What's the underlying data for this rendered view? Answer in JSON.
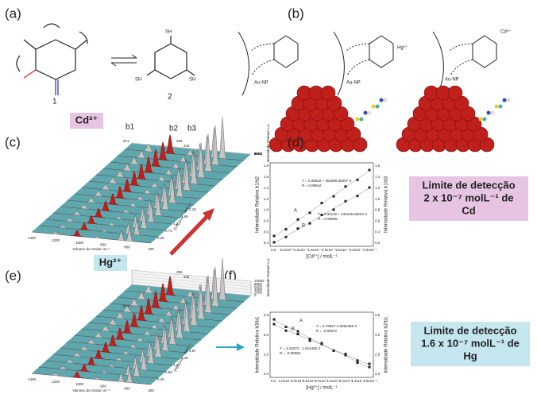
{
  "a": {
    "label": "(a)",
    "compound_1": "1",
    "compound_2": "2",
    "thiol_labels": [
      "SH",
      "SH",
      "SH"
    ]
  },
  "b": {
    "label": "(b)",
    "nanoparticle_labels": [
      "Au-NP",
      "Au-NP",
      "Au-NP"
    ],
    "ions": [
      "Hg²⁺",
      "Cd²⁺"
    ]
  },
  "c": {
    "label": "(c)",
    "ion": "Cd²⁺",
    "bands": [
      "b1",
      "b2",
      "b3"
    ],
    "peak_labels": [
      "971",
      "495",
      "432"
    ],
    "x_axis_title": "Número de Onda/ cm⁻¹",
    "x_ticks": [
      "1400",
      "1200",
      "1000",
      "800",
      "600",
      "400"
    ],
    "z_axis_title": "Intensidade Raman/ u.a.",
    "z_ticks": [
      "0",
      "2000",
      "4000",
      "6000",
      "8000"
    ],
    "conc_axis_title": "[Cd²⁺]x10⁻⁷ mol L⁻¹",
    "conc_ticks": [
      "0,25",
      "0,74",
      "1,22",
      "1,69",
      "2,15"
    ]
  },
  "d": {
    "label": "(d)",
    "y_axis_title": "Intensidade Relativa b1/b2",
    "y2_axis_title": "Intensidade Relativa b1/b3",
    "x_axis_title": "[Cd²⁺] / molL⁻¹",
    "fits": [
      "Y = 0.28632 + 353699.38207 X",
      "R = 0.99642",
      "Y = 0.31132 + 240106.59204 X",
      "R = 0.99855"
    ],
    "series_labels": [
      "A",
      "B"
    ],
    "y_ticks": [
      "0.4",
      "0.6",
      "0.8",
      "1.0",
      "1.2",
      "1.4",
      "1.6",
      "1.8"
    ],
    "y2_ticks": [
      "0.2",
      "0.4",
      "0.6",
      "0.8",
      "1.0",
      "1.2",
      "1.4",
      "1.6"
    ],
    "x_ticks": [
      "0.0",
      "5.0x10⁻⁸",
      "1.0x10⁻⁷",
      "1.5x10⁻⁷",
      "2.0x10⁻⁷",
      "2.5x10⁻⁷",
      "3.0x10⁻⁷",
      "3.5x10⁻⁷"
    ],
    "limit_note": [
      "Limite de detecção",
      "2 x 10⁻⁷ molL⁻¹ de",
      "Cd"
    ]
  },
  "e": {
    "label": "(e)",
    "ion": "Hg²⁺",
    "peak_labels": [
      "971",
      "495",
      "432"
    ],
    "x_axis_title": "Número de Onda/ cm⁻¹",
    "x_ticks": [
      "1400",
      "1200",
      "1000",
      "800",
      "600",
      "400"
    ],
    "z_axis_title": "Intensidade Raman/ u.a.",
    "z_ticks": [
      "0",
      "2000",
      "4000",
      "6000",
      "8000",
      "10000"
    ],
    "conc_axis_title": "[Hg²⁺]x10⁻⁷ mol L⁻¹",
    "conc_ticks": [
      "0,45",
      "0,83",
      "1,15",
      "1,43",
      "1,67"
    ]
  },
  "f": {
    "label": "(f)",
    "y_axis_title": "Intensidade Relativa b3/b1",
    "y2_axis_title": "Intensidade Relativa b2/b1",
    "x_axis_title": "[Hg²⁺] / molL⁻¹",
    "fits": [
      "Y = 3.79527-2.0692469 X",
      "R = -0.98372",
      "Y = 3.45372 - 1.914465 X",
      "R = -0.99050"
    ],
    "series_labels": [
      "A",
      "B"
    ],
    "y_ticks": [
      "2.0",
      "2.5",
      "3.0",
      "3.5"
    ],
    "y2_ticks": [
      "2.0",
      "2.5",
      "3.0",
      "3.5"
    ],
    "x_ticks": [
      "0.0",
      "2.0x10⁻⁷",
      "4.0x10⁻⁷",
      "6.0x10⁻⁷",
      "8.0x10⁻⁷",
      "1.0x10⁻⁶",
      "1.2x10⁻⁶",
      "1.4x10⁻⁶",
      "1.6x10⁻⁶"
    ],
    "limit_note": [
      "Limite de detecção",
      "1.6 x 10⁻⁷ molL⁻¹ de",
      "Hg"
    ]
  }
}
